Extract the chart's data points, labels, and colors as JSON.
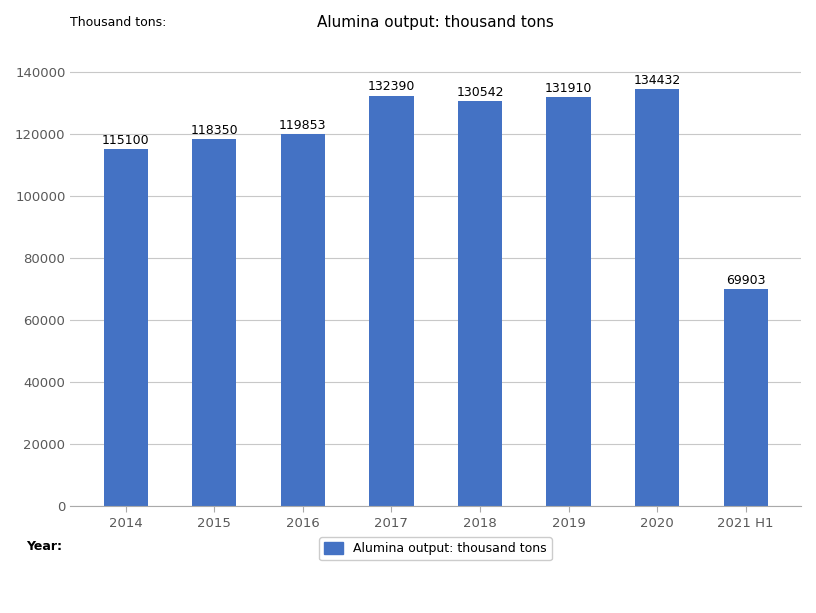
{
  "categories": [
    "2014",
    "2015",
    "2016",
    "2017",
    "2018",
    "2019",
    "2020",
    "2021 H1"
  ],
  "values": [
    115100,
    118350,
    119853,
    132390,
    130542,
    131910,
    134432,
    69903
  ],
  "bar_color": "#4472C4",
  "title": "Alumina output: thousand tons",
  "ylabel": "Thousand tons:",
  "xlabel_prefix": "Year:",
  "ylim": [
    0,
    150000
  ],
  "yticks": [
    0,
    20000,
    40000,
    60000,
    80000,
    100000,
    120000,
    140000
  ],
  "legend_label": "Alumina output: thousand tons",
  "title_fontsize": 11,
  "label_fontsize": 9,
  "tick_fontsize": 9.5,
  "bar_width": 0.5,
  "background_color": "#ffffff",
  "grid_color": "#c8c8c8"
}
